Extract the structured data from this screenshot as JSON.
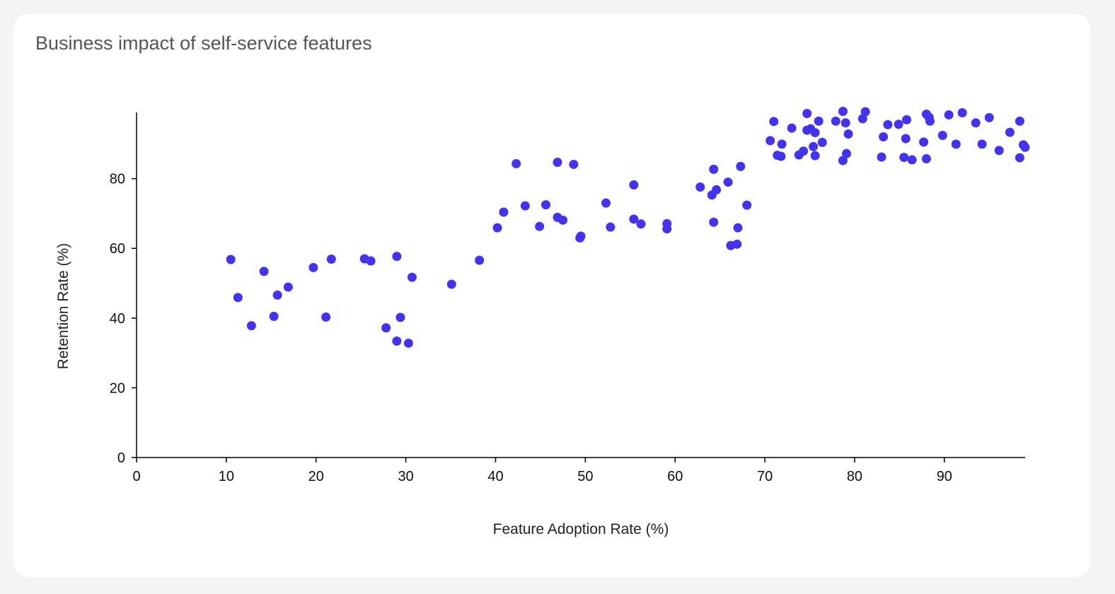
{
  "card": {
    "title": "Business impact of self-service features"
  },
  "chart_data": {
    "type": "scatter",
    "title": "Business impact of self-service features",
    "xlabel": "Feature Adoption Rate (%)",
    "ylabel": "Retention Rate (%)",
    "xlim": [
      0,
      99
    ],
    "ylim": [
      0,
      99
    ],
    "xticks": [
      0,
      10,
      20,
      30,
      40,
      50,
      60,
      70,
      80,
      90
    ],
    "yticks": [
      0,
      20,
      40,
      60,
      80
    ],
    "grid": false,
    "point_color": "#4433ee",
    "points": [
      [
        10.5,
        56.8
      ],
      [
        11.3,
        45.9
      ],
      [
        12.8,
        37.8
      ],
      [
        14.2,
        53.4
      ],
      [
        15.3,
        40.5
      ],
      [
        15.7,
        46.6
      ],
      [
        16.9,
        48.9
      ],
      [
        19.7,
        54.5
      ],
      [
        21.1,
        40.3
      ],
      [
        21.7,
        56.9
      ],
      [
        25.4,
        57.0
      ],
      [
        26.1,
        56.4
      ],
      [
        27.8,
        37.2
      ],
      [
        29.0,
        57.7
      ],
      [
        29.0,
        33.4
      ],
      [
        29.4,
        40.2
      ],
      [
        30.3,
        32.8
      ],
      [
        30.7,
        51.7
      ],
      [
        35.1,
        49.7
      ],
      [
        38.2,
        56.6
      ],
      [
        40.2,
        65.9
      ],
      [
        40.9,
        70.4
      ],
      [
        42.3,
        84.3
      ],
      [
        43.3,
        72.2
      ],
      [
        44.9,
        66.3
      ],
      [
        45.6,
        72.5
      ],
      [
        46.9,
        84.7
      ],
      [
        46.9,
        68.9
      ],
      [
        47.5,
        68.1
      ],
      [
        48.7,
        84.1
      ],
      [
        49.4,
        63.0
      ],
      [
        49.5,
        63.5
      ],
      [
        52.3,
        73.0
      ],
      [
        52.8,
        66.1
      ],
      [
        55.4,
        78.2
      ],
      [
        55.4,
        68.4
      ],
      [
        56.2,
        67.0
      ],
      [
        59.1,
        67.1
      ],
      [
        59.1,
        65.6
      ],
      [
        62.8,
        77.6
      ],
      [
        64.1,
        75.3
      ],
      [
        64.3,
        82.7
      ],
      [
        64.3,
        67.5
      ],
      [
        64.6,
        76.8
      ],
      [
        65.9,
        79.0
      ],
      [
        66.2,
        60.8
      ],
      [
        66.9,
        61.2
      ],
      [
        67.0,
        65.9
      ],
      [
        67.3,
        83.5
      ],
      [
        68.0,
        72.4
      ],
      [
        70.6,
        90.9
      ],
      [
        71.0,
        96.4
      ],
      [
        71.4,
        86.7
      ],
      [
        71.8,
        86.4
      ],
      [
        71.9,
        89.9
      ],
      [
        73.0,
        94.5
      ],
      [
        73.8,
        86.8
      ],
      [
        74.3,
        87.9
      ],
      [
        74.7,
        93.9
      ],
      [
        74.7,
        98.7
      ],
      [
        75.1,
        94.3
      ],
      [
        75.4,
        89.2
      ],
      [
        75.6,
        86.6
      ],
      [
        75.6,
        93.2
      ],
      [
        76.0,
        96.5
      ],
      [
        76.4,
        90.4
      ],
      [
        77.9,
        96.5
      ],
      [
        78.7,
        99.3
      ],
      [
        78.7,
        85.2
      ],
      [
        79.0,
        96.0
      ],
      [
        79.1,
        87.2
      ],
      [
        79.3,
        92.8
      ],
      [
        80.9,
        97.2
      ],
      [
        81.2,
        99.2
      ],
      [
        83.0,
        86.2
      ],
      [
        83.2,
        92.0
      ],
      [
        83.7,
        95.5
      ],
      [
        84.9,
        95.6
      ],
      [
        85.5,
        86.1
      ],
      [
        85.7,
        91.5
      ],
      [
        85.8,
        96.9
      ],
      [
        86.4,
        85.4
      ],
      [
        87.7,
        90.5
      ],
      [
        88.0,
        98.5
      ],
      [
        88.0,
        85.7
      ],
      [
        88.3,
        97.6
      ],
      [
        88.4,
        96.5
      ],
      [
        89.8,
        92.4
      ],
      [
        90.5,
        98.3
      ],
      [
        91.3,
        89.9
      ],
      [
        92.0,
        98.9
      ],
      [
        93.5,
        96.0
      ],
      [
        94.2,
        89.9
      ],
      [
        95.0,
        97.5
      ],
      [
        96.1,
        88.1
      ],
      [
        97.3,
        93.3
      ],
      [
        98.4,
        96.5
      ],
      [
        98.4,
        86.0
      ],
      [
        98.8,
        89.7
      ],
      [
        99.0,
        89.0
      ]
    ]
  }
}
